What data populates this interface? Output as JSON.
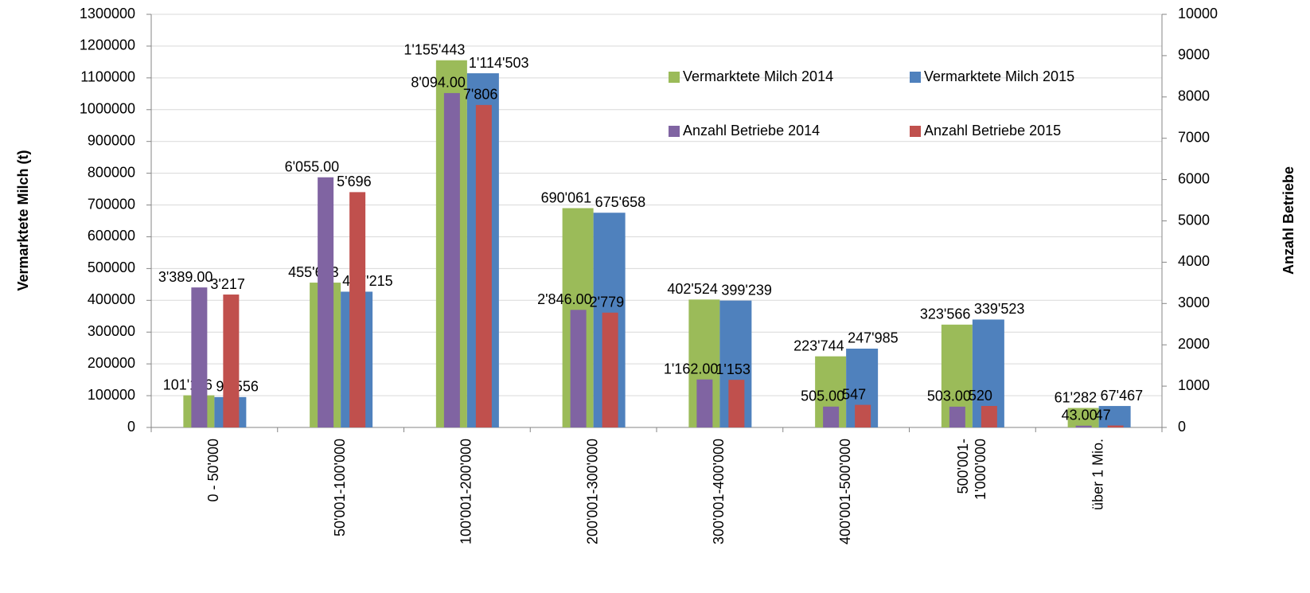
{
  "chart_data": {
    "type": "bar",
    "categories": [
      "0 - 50'000",
      "50'001-100'000",
      "100'001-200'000",
      "200'001-300'000",
      "300'001-400'000",
      "400'001-500'000",
      "500'001-\n1'000'000",
      "über 1 Mio."
    ],
    "series": [
      {
        "name": "Vermarktete Milch 2014",
        "color": "#9bbb59",
        "axis": "y",
        "values": [
          101116,
          455693,
          1155443,
          690061,
          402524,
          223744,
          323566,
          61282
        ],
        "value_labels": [
          "101'116",
          "455'693",
          "1'155'443",
          "690'061",
          "402'524",
          "223'744",
          "323'566",
          "61'282"
        ]
      },
      {
        "name": "Vermarktete Milch 2015",
        "color": "#4f81bd",
        "axis": "y",
        "values": [
          95556,
          427215,
          1114503,
          675658,
          399239,
          247985,
          339523,
          67467
        ],
        "value_labels": [
          "95'556",
          "427'215",
          "1'114'503",
          "675'658",
          "399'239",
          "247'985",
          "339'523",
          "67'467"
        ]
      },
      {
        "name": "Anzahl Betriebe 2014",
        "color": "#8064a2",
        "axis": "y2",
        "values": [
          3389,
          6055,
          8094,
          2846,
          1162,
          505,
          503,
          43
        ],
        "value_labels": [
          "3'389.00",
          "6'055.00",
          "8'094.00",
          "2'846.00",
          "1'162.00",
          "505.00",
          "503.00",
          "43.00"
        ]
      },
      {
        "name": "Anzahl Betriebe 2015",
        "color": "#c0504d",
        "axis": "y2",
        "values": [
          3217,
          5696,
          7806,
          2779,
          1153,
          547,
          520,
          47
        ],
        "value_labels": [
          "3'217",
          "5'696",
          "7'806",
          "2'779",
          "1'153",
          "547",
          "520",
          "47"
        ]
      }
    ],
    "y_label": "Vermarktete Milch (t)",
    "y2_label": "Anzahl Betriebe",
    "ylim": [
      0,
      1300000
    ],
    "yticks": [
      0,
      100000,
      200000,
      300000,
      400000,
      500000,
      600000,
      700000,
      800000,
      900000,
      1000000,
      1100000,
      1200000,
      1300000
    ],
    "y2lim": [
      0,
      10000
    ],
    "y2ticks": [
      0,
      1000,
      2000,
      3000,
      4000,
      5000,
      6000,
      7000,
      8000,
      9000,
      10000
    ],
    "grid": true
  }
}
